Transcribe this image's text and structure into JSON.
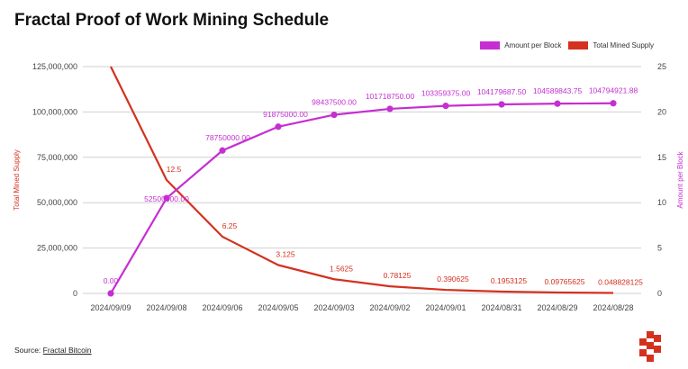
{
  "title": "Fractal Proof of Work Mining Schedule",
  "source": {
    "prefix": "Source:",
    "link": "Fractal Bitcoin"
  },
  "colors": {
    "amount_per_block": "#c52fd1",
    "total_mined_supply": "#d4311f",
    "grid": "#cfcfcf"
  },
  "chart_data": {
    "type": "line",
    "categories": [
      "2024/09/09",
      "2024/09/08",
      "2024/09/06",
      "2024/09/05",
      "2024/09/03",
      "2024/09/02",
      "2024/09/01",
      "2024/08/31",
      "2024/08/29",
      "2024/08/28"
    ],
    "y_left": {
      "label": "Total Mined Supply",
      "ylim": [
        0,
        125000000
      ],
      "ticks": [
        "0",
        "25,000,000",
        "50,000,000",
        "75,000,000",
        "100,000,000",
        "125,000,000"
      ]
    },
    "y_right": {
      "label": "Amount per Block",
      "ylim": [
        0,
        25
      ],
      "ticks": [
        "0",
        "5",
        "10",
        "15",
        "20",
        "25"
      ]
    },
    "legend_position": "top-right",
    "grid": true,
    "series": [
      {
        "name": "Amount per Block",
        "axis": "left",
        "markers": true,
        "values": [
          0,
          52500000,
          78750000,
          91875000,
          98437500,
          101718750,
          103359375,
          104179687.5,
          104589843.75,
          104794921.88
        ],
        "labels": [
          "0.00",
          "52500000.00",
          "78750000.00",
          "91875000.00",
          "98437500.00",
          "101718750.00",
          "103359375.00",
          "104179687.50",
          "104589843.75",
          "104794921.88"
        ]
      },
      {
        "name": "Total Mined Supply",
        "axis": "right",
        "markers": false,
        "values": [
          25,
          12.5,
          6.25,
          3.125,
          1.5625,
          0.78125,
          0.390625,
          0.1953125,
          0.09765625,
          0.048828125
        ],
        "labels": [
          "",
          "12.5",
          "6.25",
          "3.125",
          "1.5625",
          "0.78125",
          "0.390625",
          "0.1953125",
          "0.09765625",
          "0.048828125"
        ]
      }
    ]
  }
}
